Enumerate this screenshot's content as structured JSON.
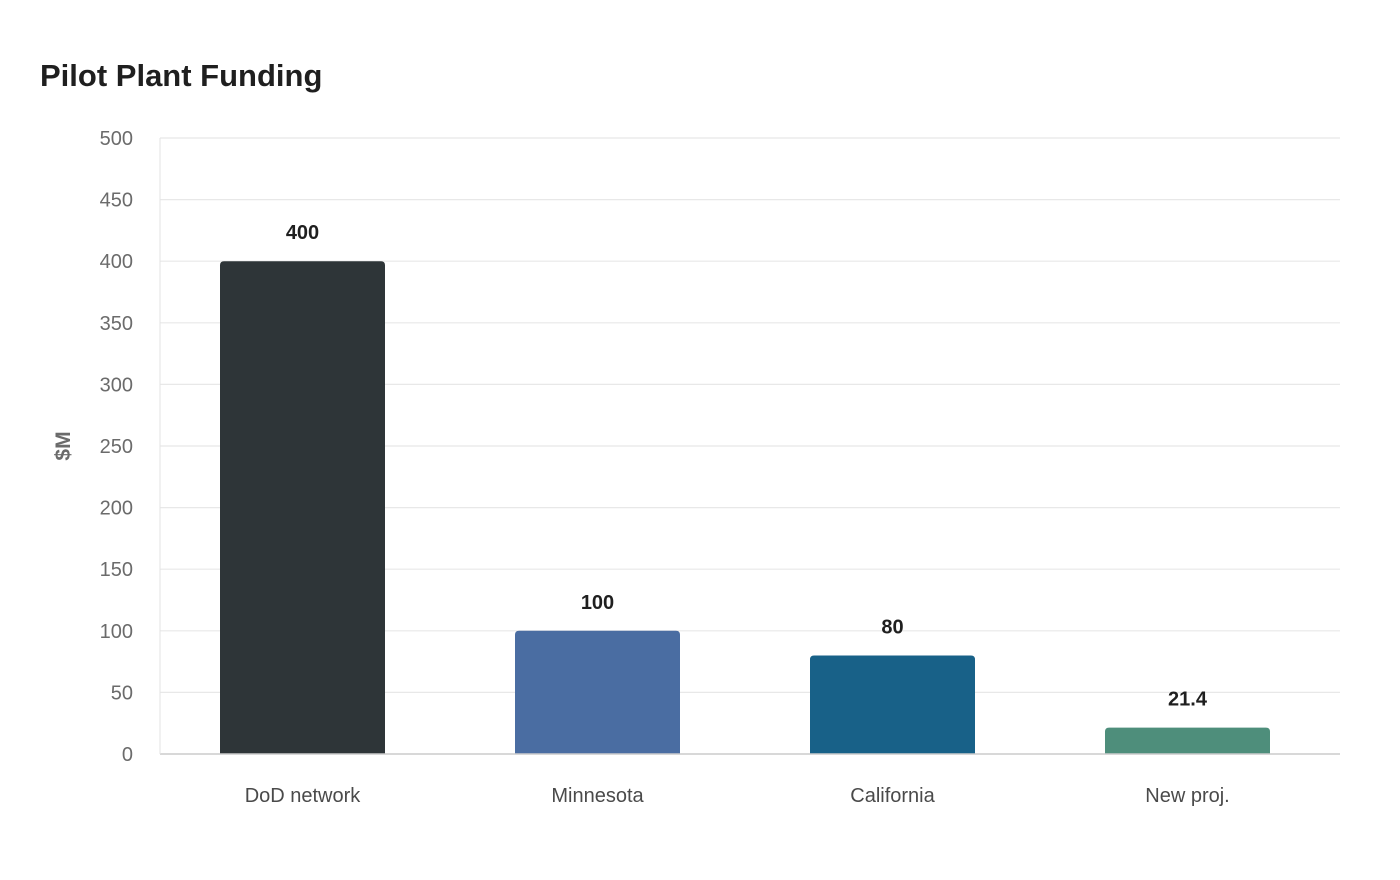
{
  "chart_data": {
    "type": "bar",
    "title": "Pilot Plant Funding",
    "xlabel": "",
    "ylabel": "$M",
    "categories": [
      "DoD network",
      "Minnesota",
      "California",
      "New proj."
    ],
    "values": [
      400,
      100,
      80,
      21.4
    ],
    "value_labels": [
      "400",
      "100",
      "80",
      "21.4"
    ],
    "colors": [
      "#2e3538",
      "#4a6da2",
      "#186188",
      "#4e8e7b"
    ],
    "ylim": [
      0,
      500
    ],
    "yticks": [
      0,
      50,
      100,
      150,
      200,
      250,
      300,
      350,
      400,
      450,
      500
    ],
    "grid": true,
    "legend": "none"
  }
}
